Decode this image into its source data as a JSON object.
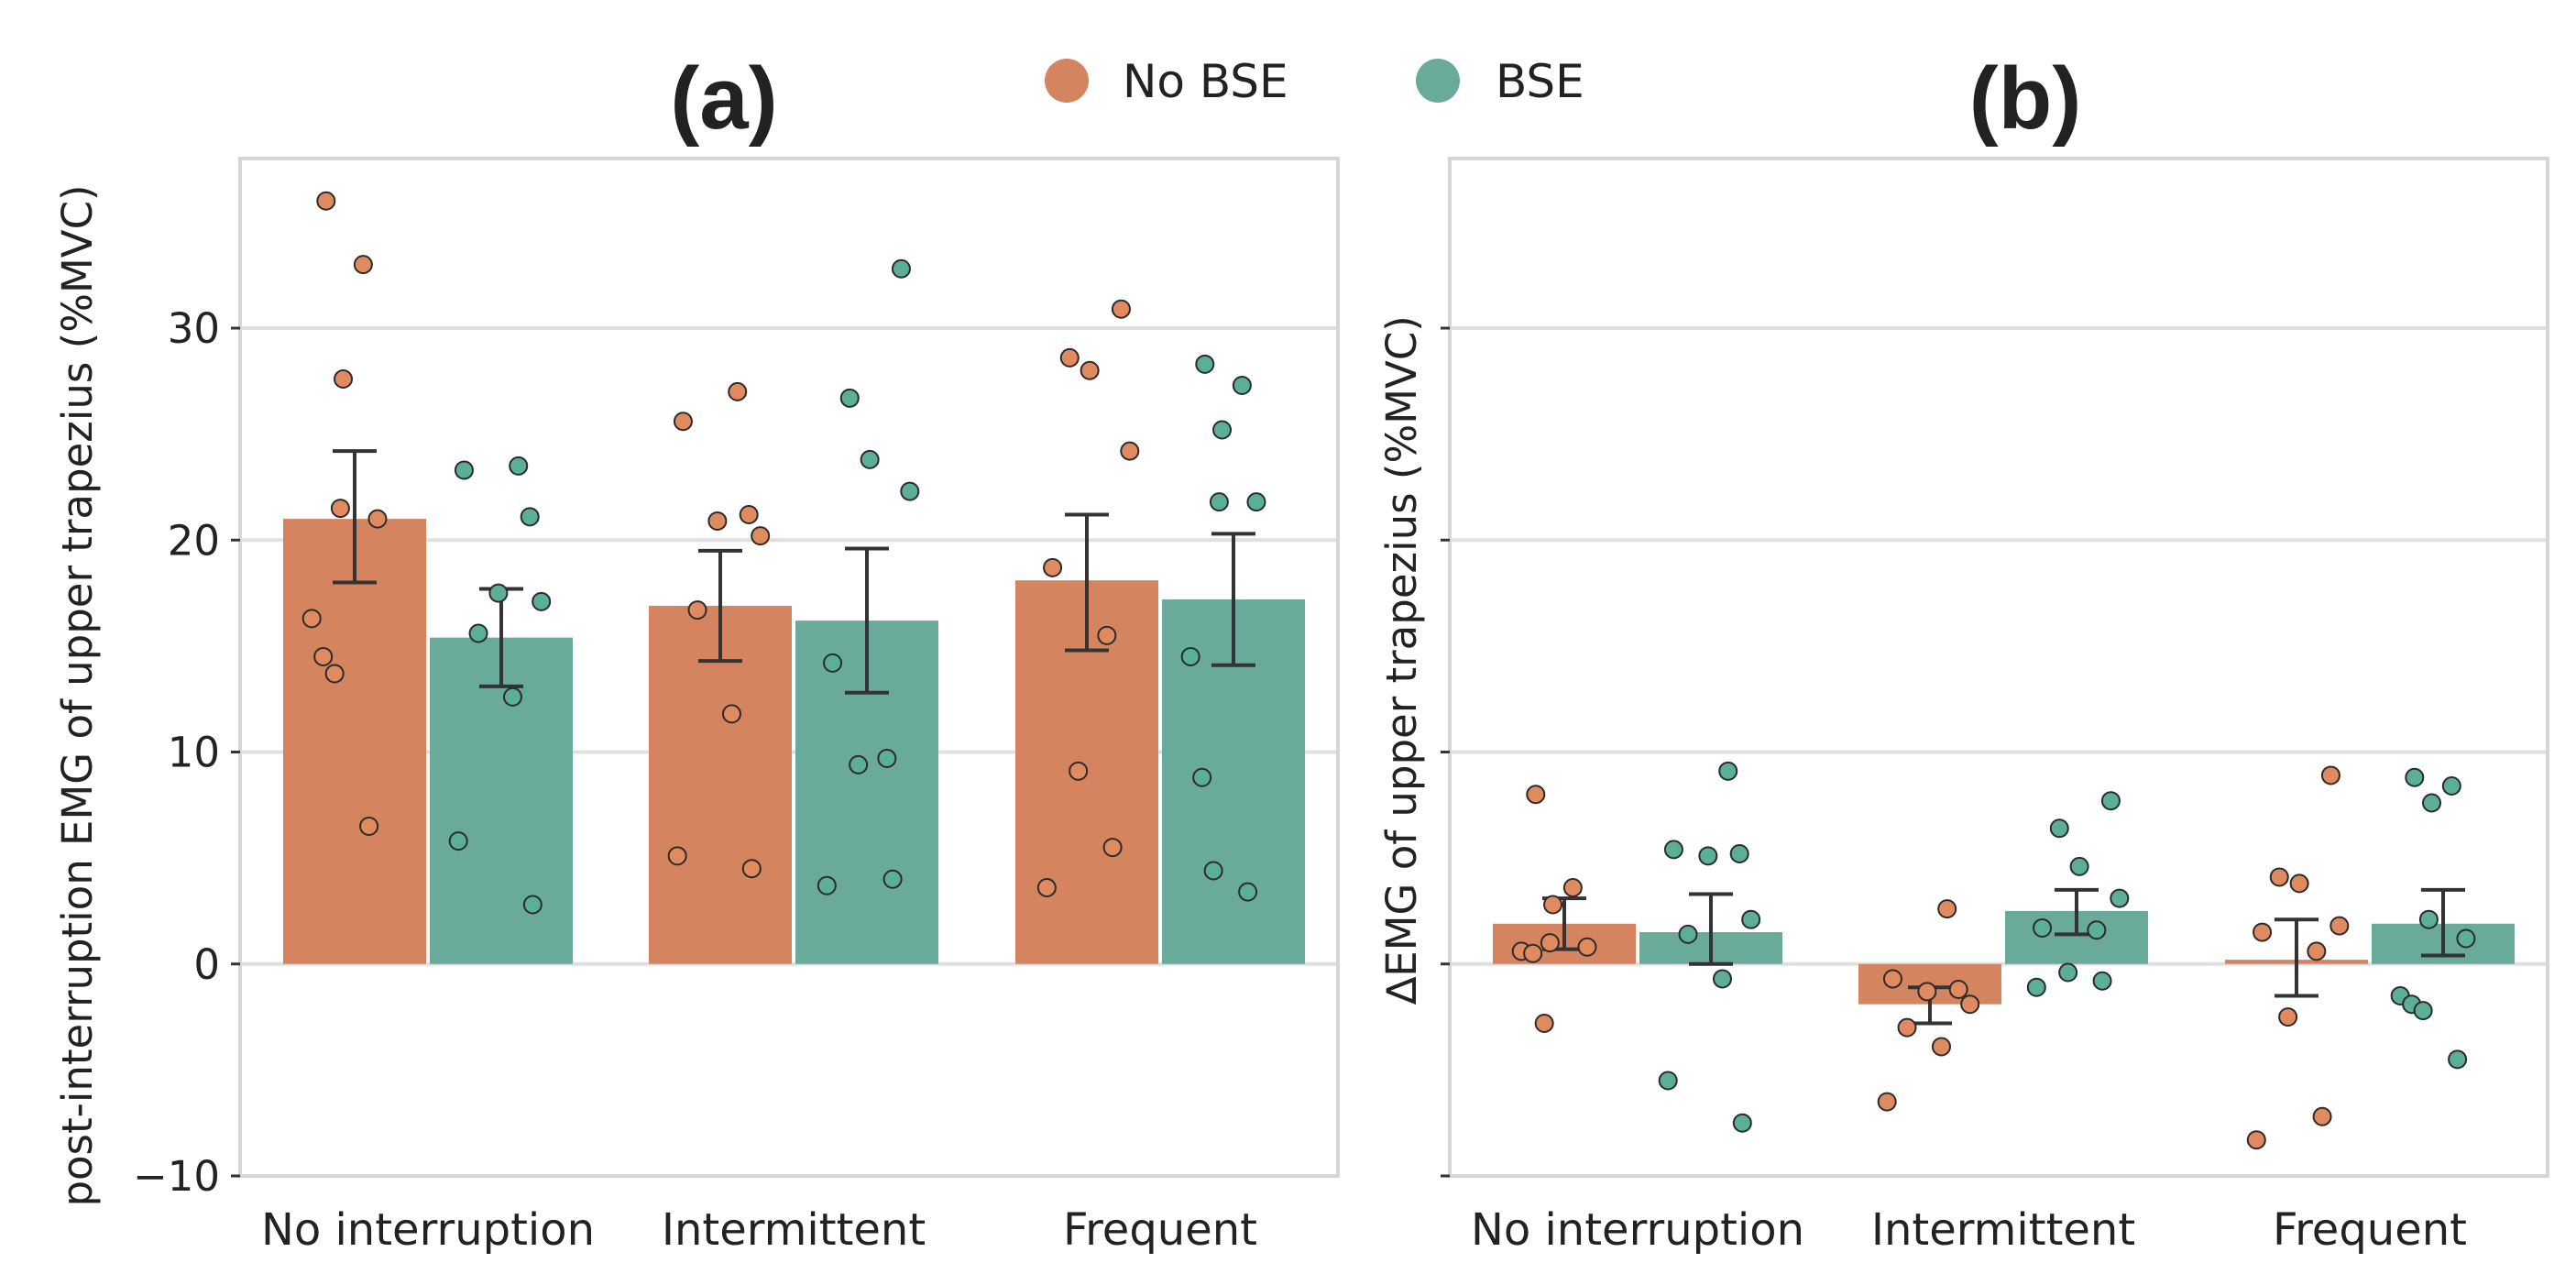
{
  "legend": {
    "entries": [
      {
        "label": "No BSE",
        "color": "#D4845E"
      },
      {
        "label": "BSE",
        "color": "#6AAA9B"
      }
    ]
  },
  "colors": {
    "no_bse_bar": "#D4845E",
    "bse_bar": "#6AAA9B",
    "no_bse_point": "#E08A5F",
    "bse_point": "#5BAE98",
    "grid": "#E0E0E0",
    "frame": "#D6D6D6",
    "error_bar": "#333333"
  },
  "chart_data": [
    {
      "type": "bar",
      "panel_label": "(a)",
      "ylabel": "post-interruption EMG of upper trapezius (%MVC)",
      "xlabel": "",
      "ylim": [
        -10,
        38
      ],
      "yticks": [
        -10,
        0,
        10,
        20,
        30
      ],
      "ytick_labels": [
        "−10",
        "0",
        "10",
        "20",
        "30"
      ],
      "grid": true,
      "categories": [
        "No interruption",
        "Intermittent",
        "Frequent"
      ],
      "series": [
        {
          "name": "No BSE",
          "values": [
            21.0,
            16.9,
            18.1
          ],
          "errors": [
            [
              18.0,
              24.2
            ],
            [
              14.3,
              19.5
            ],
            [
              14.8,
              21.2
            ]
          ],
          "points": [
            [
              36.0,
              33.0,
              27.6,
              21.5,
              21.0,
              16.3,
              14.5,
              13.7,
              6.5
            ],
            [
              27.0,
              25.6,
              21.2,
              20.9,
              20.2,
              16.7,
              11.8,
              5.1,
              4.5
            ],
            [
              30.9,
              28.6,
              28.0,
              24.2,
              18.7,
              15.5,
              9.1,
              5.5,
              3.6
            ]
          ]
        },
        {
          "name": "BSE",
          "values": [
            15.4,
            16.2,
            17.2
          ],
          "errors": [
            [
              13.1,
              17.7
            ],
            [
              12.8,
              19.6
            ],
            [
              14.1,
              20.3
            ]
          ],
          "points": [
            [
              23.5,
              23.3,
              21.1,
              17.5,
              17.1,
              15.6,
              12.6,
              5.8,
              2.8
            ],
            [
              32.8,
              26.7,
              23.8,
              22.3,
              14.2,
              9.7,
              9.4,
              4.0,
              3.7
            ],
            [
              28.3,
              27.3,
              25.2,
              21.8,
              21.8,
              14.5,
              8.8,
              4.4,
              3.4
            ]
          ]
        }
      ]
    },
    {
      "type": "bar",
      "panel_label": "(b)",
      "ylabel": "∆EMG of upper trapezius (%MVC)",
      "xlabel": "",
      "ylim": [
        -10,
        38
      ],
      "yticks": [
        -10,
        0,
        10,
        20,
        30
      ],
      "grid": true,
      "categories": [
        "No interruption",
        "Intermittent",
        "Frequent"
      ],
      "series": [
        {
          "name": "No BSE",
          "values": [
            1.9,
            -1.9,
            0.2
          ],
          "errors": [
            [
              0.7,
              3.1
            ],
            [
              -2.8,
              -1.1
            ],
            [
              -1.5,
              2.1
            ]
          ],
          "points": [
            [
              8.0,
              3.6,
              2.8,
              1.0,
              0.8,
              0.6,
              0.5,
              -2.8
            ],
            [
              2.6,
              -0.7,
              -1.2,
              -1.3,
              -1.9,
              -3.0,
              -3.9,
              -6.5
            ],
            [
              8.9,
              4.1,
              3.8,
              1.8,
              1.5,
              0.6,
              -2.5,
              -7.2,
              -8.3
            ]
          ]
        },
        {
          "name": "BSE",
          "values": [
            1.5,
            2.5,
            1.9
          ],
          "errors": [
            [
              0.0,
              3.3
            ],
            [
              1.4,
              3.5
            ],
            [
              0.4,
              3.5
            ]
          ],
          "points": [
            [
              9.1,
              5.4,
              5.2,
              5.1,
              2.1,
              1.4,
              -0.7,
              -5.5,
              -7.5
            ],
            [
              7.7,
              6.4,
              4.6,
              3.1,
              1.7,
              1.6,
              -0.4,
              -0.8,
              -1.1
            ],
            [
              8.8,
              8.4,
              7.6,
              2.1,
              1.2,
              -1.5,
              -1.9,
              -2.2,
              -4.5
            ]
          ]
        }
      ]
    }
  ]
}
